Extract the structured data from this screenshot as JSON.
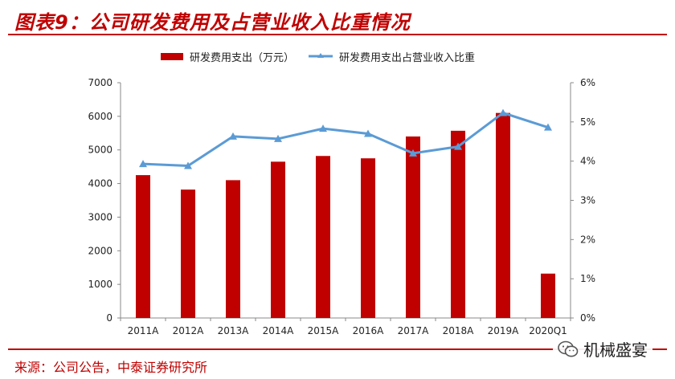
{
  "header": {
    "title": "图表9：公司研发费用及占营业收入比重情况"
  },
  "footer": {
    "source": "来源：公司公告，中泰证券研究所"
  },
  "watermark": {
    "text": "机械盛宴",
    "icon": "wechat-icon"
  },
  "colors": {
    "accent": "#c00000",
    "bar": "#c00000",
    "line": "#5b9bd5"
  },
  "chart_data": {
    "type": "bar",
    "categories": [
      "2011A",
      "2012A",
      "2013A",
      "2014A",
      "2015A",
      "2016A",
      "2017A",
      "2018A",
      "2019A",
      "2020Q1"
    ],
    "series": [
      {
        "name": "研发费用支出（万元）",
        "type": "bar",
        "axis": "left",
        "values": [
          4250,
          3820,
          4100,
          4650,
          4820,
          4750,
          5400,
          5570,
          6100,
          1320
        ]
      },
      {
        "name": "研发费用支出占营业收入比重",
        "type": "line",
        "axis": "right",
        "values": [
          3.93,
          3.88,
          4.63,
          4.57,
          4.83,
          4.7,
          4.2,
          4.37,
          5.23,
          4.86
        ]
      }
    ],
    "y_left": {
      "ylim": [
        0,
        7000
      ],
      "ticks": [
        "0",
        "1000",
        "2000",
        "3000",
        "4000",
        "5000",
        "6000",
        "7000"
      ]
    },
    "y_right": {
      "ylim": [
        0,
        6
      ],
      "ticks": [
        "0%",
        "1%",
        "2%",
        "3%",
        "4%",
        "5%",
        "6%"
      ]
    },
    "legend_position": "top",
    "grid": false
  }
}
